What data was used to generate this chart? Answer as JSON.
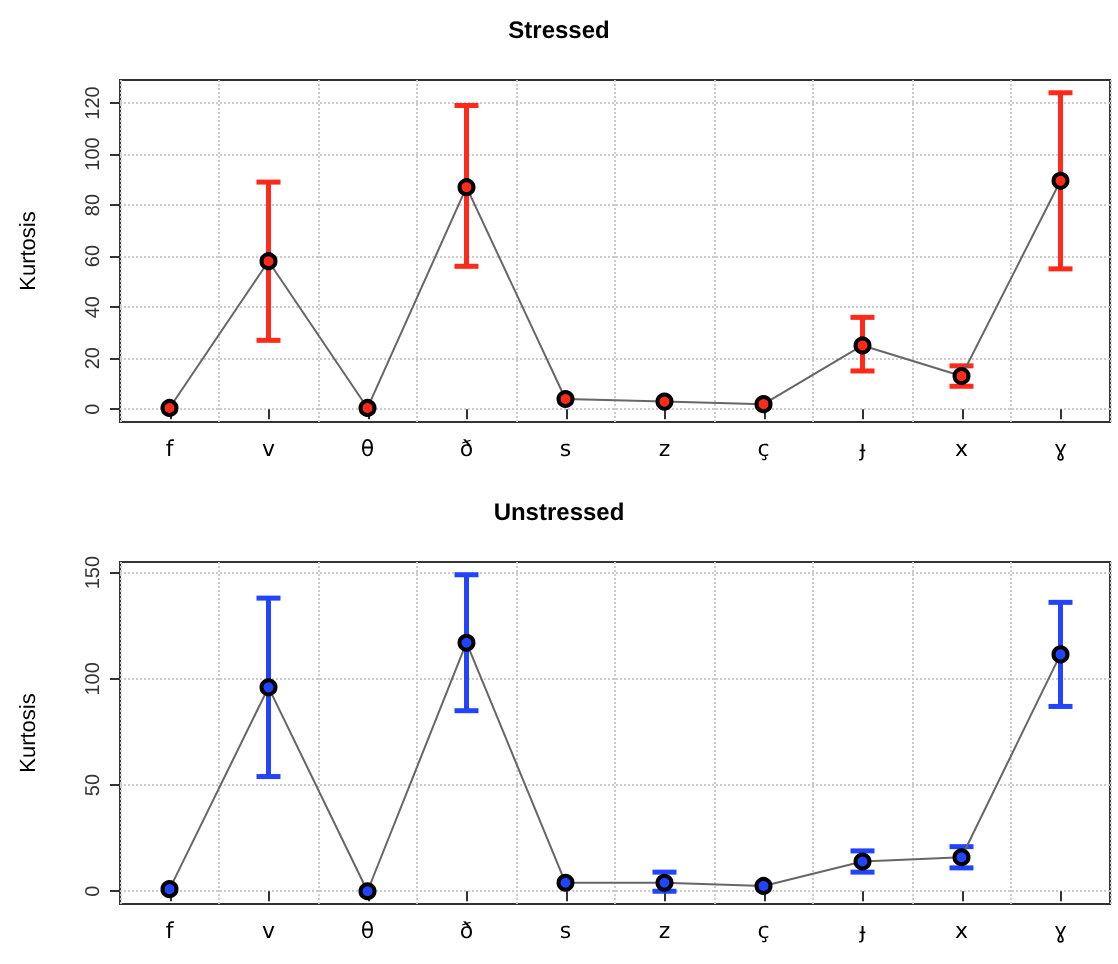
{
  "chart_data": [
    {
      "type": "line",
      "title": "Stressed",
      "ylabel": "Kurtosis",
      "categories": [
        "f",
        "v",
        "θ",
        "ð",
        "s",
        "z",
        "ç",
        "ɟ",
        "x",
        "ɣ"
      ],
      "series": [
        {
          "color": "#ff2a1a",
          "values": [
            0.5,
            58,
            0.5,
            87,
            4,
            3,
            2,
            25,
            13,
            89.5
          ],
          "errors": [
            null,
            [
              27,
              89
            ],
            null,
            [
              56,
              119
            ],
            null,
            null,
            null,
            [
              15,
              36
            ],
            [
              9,
              17
            ],
            [
              55,
              124
            ]
          ]
        }
      ],
      "ylim": [
        -5,
        129
      ],
      "yticks": [
        0,
        20,
        40,
        60,
        80,
        100,
        120
      ],
      "grid": true,
      "marker": "circle"
    },
    {
      "type": "line",
      "title": "Unstressed",
      "ylabel": "Kurtosis",
      "categories": [
        "f",
        "v",
        "θ",
        "ð",
        "s",
        "z",
        "ç",
        "ɟ",
        "x",
        "ɣ"
      ],
      "series": [
        {
          "color": "#2244ff",
          "values": [
            1,
            96,
            0,
            117,
            4,
            4,
            2.5,
            14,
            16,
            111.5
          ],
          "errors": [
            null,
            [
              54,
              138
            ],
            null,
            [
              85,
              149
            ],
            null,
            [
              0,
              9
            ],
            null,
            [
              9,
              19
            ],
            [
              11,
              21
            ],
            [
              87,
              136
            ]
          ]
        }
      ],
      "ylim": [
        -6,
        155
      ],
      "yticks": [
        0,
        50,
        100,
        150
      ],
      "grid": true,
      "marker": "circle"
    }
  ]
}
